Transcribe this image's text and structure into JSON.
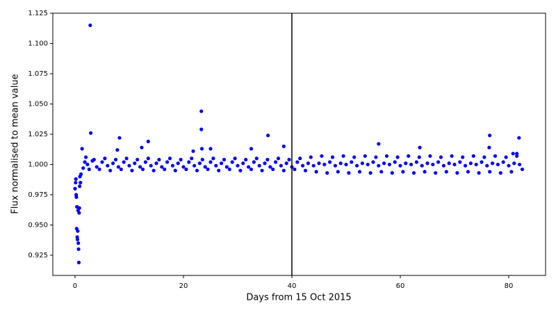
{
  "chart_data": {
    "type": "scatter",
    "xlabel": "Days from 15 Oct 2015",
    "ylabel": "Flux normalised to mean value",
    "xlim": [
      -4.1,
      86.8
    ],
    "ylim": [
      0.9083,
      1.125
    ],
    "xticks": [
      0,
      20,
      40,
      60,
      80
    ],
    "yticks": [
      0.925,
      {
        "value": 0.95,
        "label": "0.950"
      },
      0.975,
      {
        "value": 1,
        "label": "1.000"
      },
      1.025,
      {
        "value": 1.05,
        "label": "1.050"
      },
      1.075,
      {
        "value": 1.1,
        "label": "1.100"
      },
      1.125
    ],
    "vline": 40,
    "vline_color": "#000000",
    "series": [
      {
        "color": "#0000ff",
        "x": [
          0,
          0.1,
          0.15,
          0.2,
          0.25,
          0.3,
          0.35,
          0.4,
          0.45,
          0.5,
          0.55,
          0.6,
          0.65,
          0.7,
          0.75,
          0.8,
          0.85,
          0.9,
          1.0,
          1.1,
          1.3,
          1.5,
          1.8,
          2.0,
          2.3,
          2.6,
          2.8,
          2.9,
          3.2,
          3.5,
          4,
          4.5,
          5,
          5.5,
          6,
          6.5,
          7,
          7.5,
          8,
          8.5,
          9,
          9.5,
          10,
          10.5,
          11,
          11.5,
          12,
          12.5,
          13,
          13.5,
          14,
          14.5,
          15,
          15.5,
          16,
          16.5,
          17,
          17.5,
          18,
          18.5,
          19,
          19.5,
          20,
          20.5,
          21,
          21.5,
          22,
          22.5,
          23,
          23.5,
          24,
          24.5,
          25,
          25.5,
          26,
          26.5,
          27,
          27.5,
          28,
          28.5,
          29,
          29.5,
          30,
          30.5,
          31,
          31.5,
          32,
          32.5,
          33,
          33.5,
          34,
          34.5,
          35,
          35.5,
          36,
          36.5,
          37,
          37.5,
          38,
          38.5,
          39,
          39.5,
          40,
          40.5,
          41,
          41.5,
          42,
          42.5,
          43,
          43.5,
          44,
          44.5,
          45,
          45.5,
          46,
          46.5,
          47,
          47.5,
          48,
          48.5,
          49,
          49.5,
          50,
          50.5,
          51,
          51.5,
          52,
          52.5,
          53,
          53.5,
          54,
          54.5,
          55,
          55.5,
          56,
          56.5,
          57,
          57.5,
          58,
          58.5,
          59,
          59.5,
          60,
          60.5,
          61,
          61.5,
          62,
          62.5,
          63,
          63.5,
          64,
          64.5,
          65,
          65.5,
          66,
          66.5,
          67,
          67.5,
          68,
          68.5,
          69,
          69.5,
          70,
          70.5,
          71,
          71.5,
          72,
          72.5,
          73,
          73.5,
          74,
          74.5,
          75,
          75.5,
          76,
          76.5,
          77,
          77.5,
          78,
          78.5,
          79,
          79.5,
          80,
          80.5,
          81,
          81.5,
          82,
          82.5,
          8.2,
          7.8,
          12.3,
          13.5,
          23.3,
          23.3,
          23.4,
          21.8,
          25,
          35.6,
          38.5,
          32.5,
          56,
          63.6,
          76.5,
          76.4,
          81.9,
          81.5,
          80.8
        ],
        "values": [
          0.98,
          0.985,
          0.988,
          0.975,
          0.973,
          0.947,
          0.965,
          0.94,
          0.938,
          0.945,
          0.962,
          0.935,
          0.93,
          0.919,
          0.96,
          0.964,
          0.982,
          0.99,
          0.985,
          0.992,
          1.013,
          0.997,
          1.002,
          1.006,
          1.0,
          0.996,
          1.115,
          1.026,
          1.003,
          1.004,
          0.998,
          0.996,
          1.002,
          1.005,
          0.999,
          0.995,
          1.001,
          1.004,
          0.998,
          0.996,
          1.002,
          1.005,
          0.999,
          0.995,
          1.001,
          1.004,
          0.998,
          0.996,
          1.002,
          1.005,
          0.999,
          0.995,
          1.001,
          1.004,
          0.998,
          0.996,
          1.002,
          1.005,
          0.999,
          0.995,
          1.001,
          1.004,
          0.998,
          0.996,
          1.002,
          1.005,
          0.999,
          0.995,
          1.001,
          1.004,
          0.998,
          0.996,
          1.002,
          1.005,
          0.999,
          0.995,
          1.001,
          1.004,
          0.998,
          0.996,
          1.002,
          1.005,
          0.999,
          0.995,
          1.001,
          1.004,
          0.998,
          0.996,
          1.002,
          1.005,
          0.999,
          0.995,
          1.001,
          1.004,
          0.998,
          0.996,
          1.002,
          1.005,
          0.999,
          0.995,
          1.001,
          1.004,
          0.998,
          0.996,
          1.002,
          1.005,
          0.999,
          0.995,
          1.001,
          1.006,
          0.999,
          0.994,
          1.001,
          1.007,
          1.0,
          0.993,
          1.002,
          1.006,
          0.999,
          0.994,
          1.001,
          1.007,
          1.0,
          0.993,
          1.002,
          1.006,
          0.999,
          0.994,
          1.001,
          1.007,
          1.0,
          0.993,
          1.002,
          1.006,
          0.999,
          0.994,
          1.001,
          1.007,
          1.0,
          0.993,
          1.002,
          1.006,
          0.999,
          0.994,
          1.001,
          1.007,
          1.0,
          0.993,
          1.002,
          1.006,
          0.999,
          0.994,
          1.001,
          1.007,
          1.0,
          0.993,
          1.002,
          1.006,
          0.999,
          0.994,
          1.001,
          1.007,
          1.0,
          0.993,
          1.002,
          1.006,
          0.999,
          0.994,
          1.001,
          1.007,
          1.0,
          0.993,
          1.002,
          1.006,
          0.999,
          0.994,
          1.001,
          1.007,
          1.0,
          0.993,
          1.002,
          1.006,
          0.999,
          0.994,
          1.001,
          1.007,
          1.0,
          0.996,
          1.022,
          1.012,
          1.014,
          1.019,
          1.044,
          1.029,
          1.013,
          1.011,
          1.013,
          1.024,
          1.015,
          1.013,
          1.017,
          1.014,
          1.024,
          1.014,
          1.022,
          1.009,
          1.009
        ]
      }
    ]
  }
}
